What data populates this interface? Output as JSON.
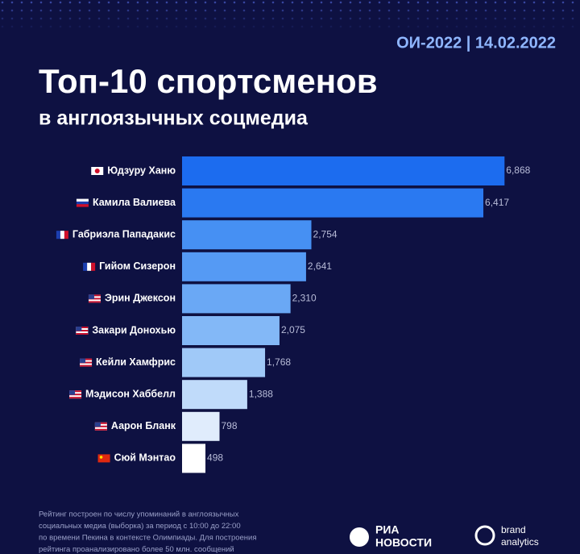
{
  "chart_data": {
    "type": "bar",
    "orientation": "horizontal",
    "badge": "ОИ-2022 | 14.02.2022",
    "title": "Топ-10 спортсменов",
    "subtitle": "в англоязычных соцмедиа",
    "categories": [
      "Юдзуру Ханю",
      "Камила Валиева",
      "Габриэла Пападакис",
      "Гийом Сизерон",
      "Эрин Джексон",
      "Закари Донохью",
      "Кейли Хамфрис",
      "Мэдисон Хаббелл",
      "Аарон Бланк",
      "Сюй Мэнтао"
    ],
    "values": [
      6868,
      6417,
      2754,
      2641,
      2310,
      2075,
      1768,
      1388,
      798,
      498
    ],
    "value_labels": [
      "6,868",
      "6,417",
      "2,754",
      "2,641",
      "2,310",
      "2,075",
      "1,768",
      "1,388",
      "798",
      "498"
    ],
    "colors": [
      "#1c6cef",
      "#2a79f1",
      "#4690f3",
      "#559af4",
      "#6aa8f5",
      "#83b8f7",
      "#a0c9f8",
      "#c0dbfa",
      "#e0ecfc",
      "#ffffff"
    ],
    "xlim": [
      0,
      7000
    ],
    "note": [
      "Рейтинг построен по числу упоминаний в англоязычных",
      "социальных медиа (выборка) за период с 10:00 до 22:00",
      "по времени Пекина в контексте Олимпиады. Для построения",
      "рейтинга проанализировано более 50 млн. сообщений"
    ],
    "logos": {
      "ria": [
        "РИА",
        "НОВОСТИ"
      ],
      "brand": [
        "brand",
        "analytics"
      ]
    }
  }
}
